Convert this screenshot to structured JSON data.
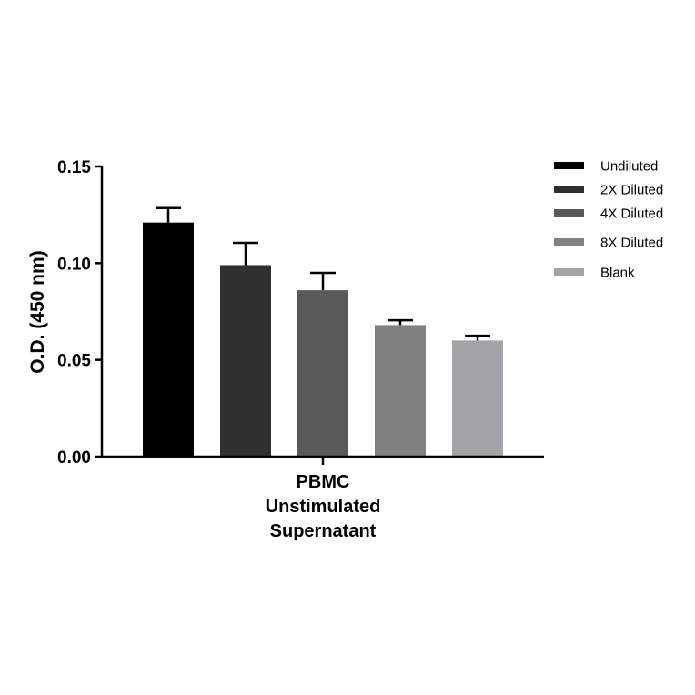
{
  "chart_data": {
    "type": "bar",
    "title": "",
    "xlabel": "",
    "ylabel": "O.D. (450 nm)",
    "ylim": [
      0,
      0.15
    ],
    "yticks": [
      {
        "value": 0.0,
        "label": "0.00"
      },
      {
        "value": 0.05,
        "label": "0.05"
      },
      {
        "value": 0.1,
        "label": "0.10"
      },
      {
        "value": 0.15,
        "label": "0.15"
      }
    ],
    "category_lines": [
      "PBMC",
      "Unstimulated",
      "Supernatant"
    ],
    "legend_position": "right",
    "series": [
      {
        "name": "Undiluted",
        "value": 0.121,
        "error": 0.0075,
        "color": "#000000"
      },
      {
        "name": "2X Diluted",
        "value": 0.099,
        "error": 0.0115,
        "color": "#303030"
      },
      {
        "name": "4X Diluted",
        "value": 0.086,
        "error": 0.009,
        "color": "#5a5a5a"
      },
      {
        "name": "8X Diluted",
        "value": 0.068,
        "error": 0.0025,
        "color": "#808080"
      },
      {
        "name": "Blank",
        "value": 0.06,
        "error": 0.0025,
        "color": "#a4a4a8"
      }
    ]
  }
}
